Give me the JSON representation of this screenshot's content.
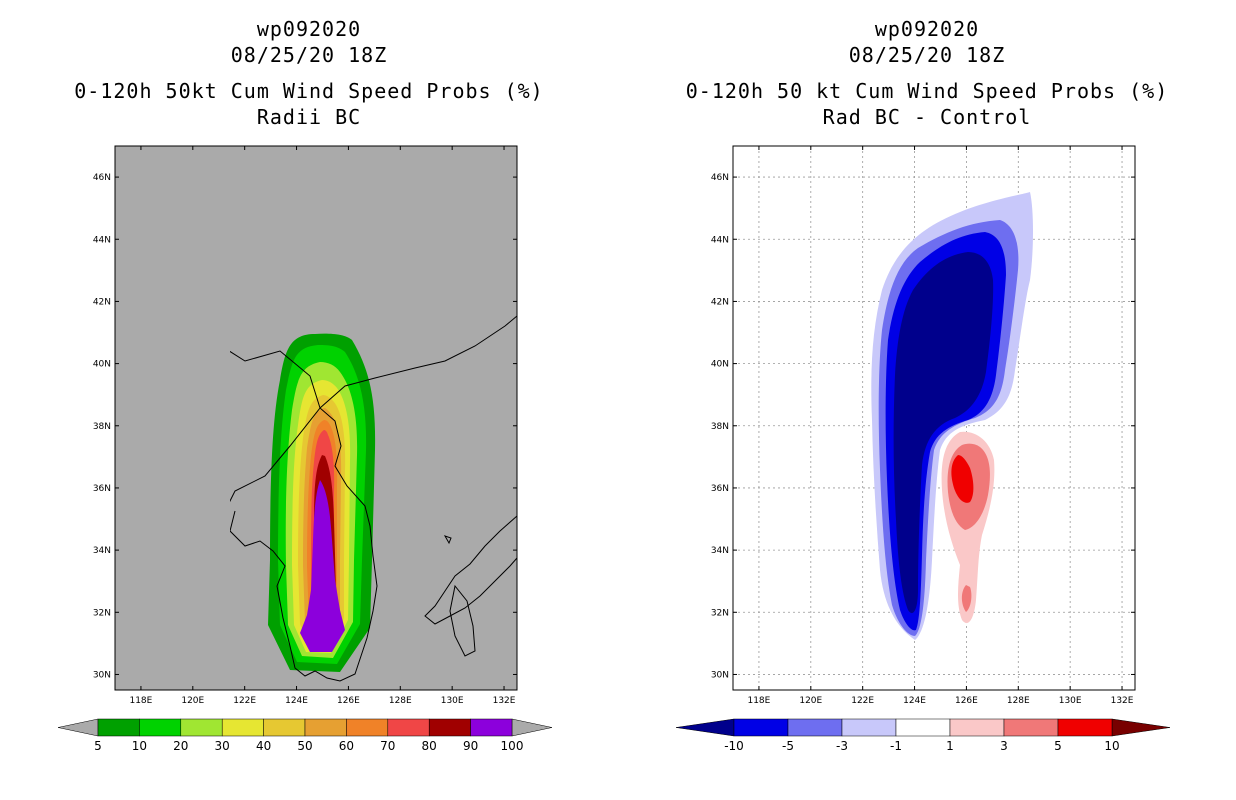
{
  "left": {
    "title_line1": "wp092020",
    "title_line2": "08/25/20 18Z",
    "title_line3": "0-120h 50kt Cum Wind Speed Probs (%)",
    "title_line4": "Radii BC",
    "background_color": "#aaaaaa",
    "colorbar": {
      "labels": [
        "5",
        "10",
        "20",
        "30",
        "40",
        "50",
        "60",
        "70",
        "80",
        "90",
        "100"
      ],
      "colors": [
        "#00a000",
        "#00d200",
        "#a0e632",
        "#e6e632",
        "#e6c832",
        "#e6a032",
        "#f08228",
        "#f04646",
        "#a00000",
        "#8c00dc"
      ],
      "arrow_colors": [
        "#aaaaaa",
        "#aaaaaa"
      ]
    }
  },
  "right": {
    "title_line1": "wp092020",
    "title_line2": "08/25/20 18Z",
    "title_line3": "0-120h 50 kt Cum Wind Speed Probs (%)",
    "title_line4": "Rad BC - Control",
    "background_color": "#ffffff",
    "colorbar": {
      "labels": [
        "-10",
        "-5",
        "-3",
        "-1",
        "1",
        "3",
        "5",
        "10"
      ],
      "colors": [
        "#0000e6",
        "#6e6ef0",
        "#c8c8fa",
        "#ffffff",
        "#fac8c8",
        "#f07878",
        "#f00000"
      ],
      "arrow_colors": [
        "#00008c",
        "#780000"
      ]
    }
  },
  "axes": {
    "x_labels": [
      "118E",
      "120E",
      "122E",
      "124E",
      "126E",
      "128E",
      "130E",
      "132E"
    ],
    "y_labels": [
      "30N",
      "32N",
      "34N",
      "36N",
      "38N",
      "40N",
      "42N",
      "44N",
      "46N"
    ],
    "lon_range": [
      117,
      132.5
    ],
    "lat_range": [
      29.5,
      47
    ]
  }
}
